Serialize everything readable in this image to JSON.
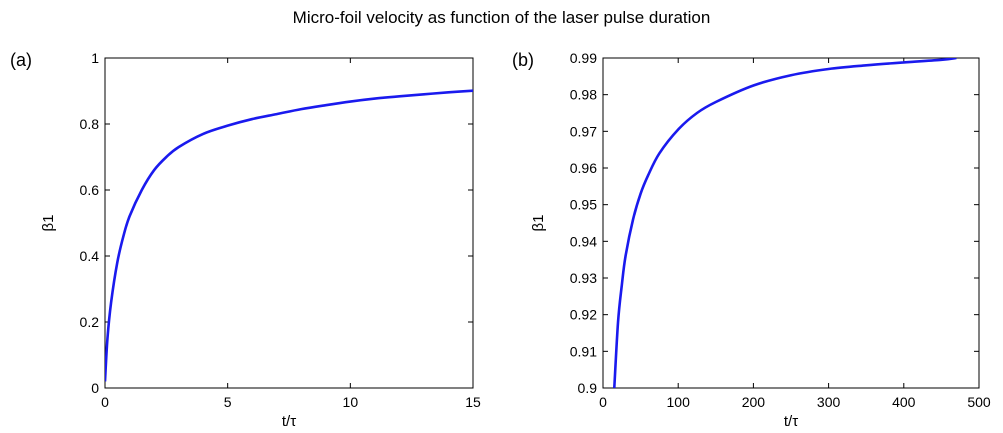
{
  "figure": {
    "title": "Micro-foil velocity as function of the laser pulse duration",
    "panel_labels": [
      "(a)",
      "(b)"
    ]
  },
  "colors": {
    "curve": "#1a1aee",
    "axes": "#000000",
    "background": "#ffffff"
  },
  "chart_data": [
    {
      "type": "line",
      "panel": "(a)",
      "title": "",
      "xlabel": "t/τ",
      "ylabel": "β1",
      "xlim": [
        0,
        15
      ],
      "ylim": [
        0,
        1
      ],
      "xticks": [
        0,
        5,
        10,
        15
      ],
      "xtick_labels": [
        "0",
        "5",
        "10",
        "15"
      ],
      "yticks": [
        0,
        0.2,
        0.4,
        0.6,
        0.8,
        1
      ],
      "ytick_labels": [
        "0",
        "0.2",
        "0.4",
        "0.6",
        "0.8",
        "1"
      ],
      "grid": false,
      "legend": "none",
      "series": [
        {
          "x": [
            0,
            0.1,
            0.25,
            0.5,
            0.75,
            1,
            1.5,
            2,
            2.5,
            3,
            4,
            5,
            6,
            7,
            8,
            9,
            10,
            11,
            12,
            13,
            14,
            15
          ],
          "y": [
            0.02,
            0.15,
            0.26,
            0.38,
            0.46,
            0.52,
            0.6,
            0.66,
            0.7,
            0.73,
            0.77,
            0.795,
            0.815,
            0.83,
            0.845,
            0.857,
            0.868,
            0.877,
            0.884,
            0.89,
            0.896,
            0.901
          ]
        }
      ]
    },
    {
      "type": "line",
      "panel": "(b)",
      "title": "",
      "xlabel": "t/τ",
      "ylabel": "β1",
      "xlim": [
        0,
        500
      ],
      "ylim": [
        0.9,
        0.99
      ],
      "xticks": [
        0,
        100,
        200,
        300,
        400,
        500
      ],
      "xtick_labels": [
        "0",
        "100",
        "200",
        "300",
        "400",
        "500"
      ],
      "yticks": [
        0.9,
        0.91,
        0.92,
        0.93,
        0.94,
        0.95,
        0.96,
        0.97,
        0.98,
        0.99
      ],
      "ytick_labels": [
        "0.9",
        "0.91",
        "0.92",
        "0.93",
        "0.94",
        "0.95",
        "0.96",
        "0.97",
        "0.98",
        "0.99"
      ],
      "grid": false,
      "legend": "none",
      "series": [
        {
          "x": [
            15,
            20,
            25,
            30,
            40,
            50,
            60,
            75,
            100,
            125,
            150,
            200,
            250,
            300,
            350,
            400,
            450,
            470
          ],
          "y": [
            0.9,
            0.918,
            0.928,
            0.936,
            0.946,
            0.953,
            0.958,
            0.964,
            0.9705,
            0.975,
            0.978,
            0.9825,
            0.9853,
            0.987,
            0.988,
            0.9888,
            0.9895,
            0.99
          ]
        }
      ]
    }
  ]
}
